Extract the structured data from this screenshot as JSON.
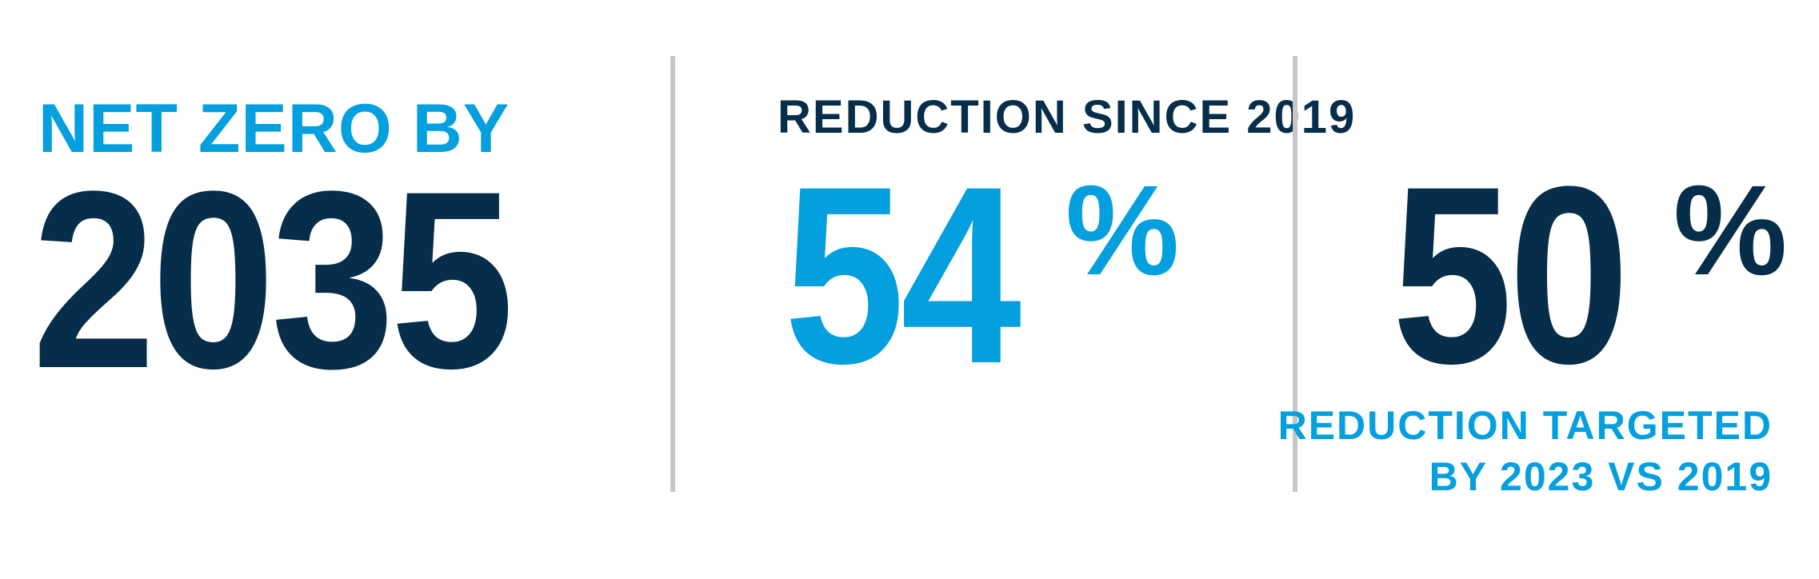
{
  "colors": {
    "navy": "#062d49",
    "blue": "#049fdf",
    "divider": "#c6c6c6"
  },
  "panels": [
    {
      "label": "NET ZERO BY",
      "value": "2035"
    },
    {
      "label": "REDUCTION SINCE 2019",
      "value": "54",
      "unit": "%"
    },
    {
      "value": "50",
      "unit": "%",
      "caption_line1": "REDUCTION TARGETED",
      "caption_line2": "BY 2023 VS 2019"
    }
  ]
}
